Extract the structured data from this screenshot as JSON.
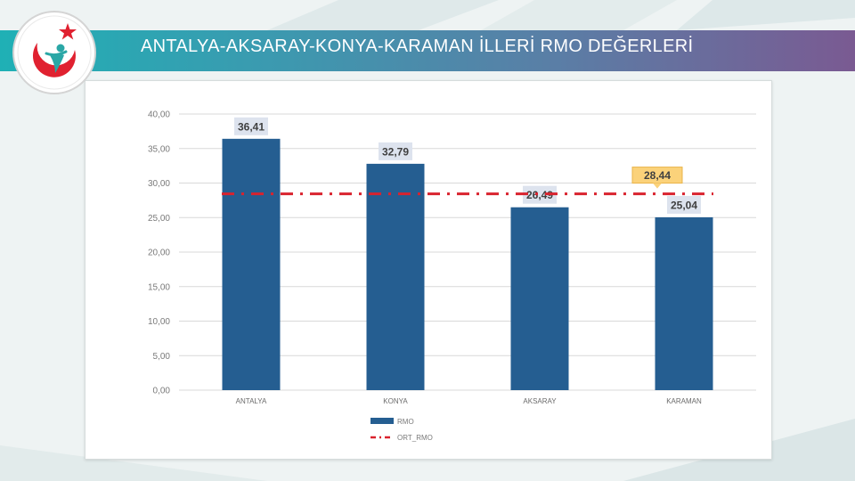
{
  "header": {
    "title": "ANTALYA-AKSARAY-KONYA-KARAMAN İLLERİ RMO DEĞERLERİ",
    "logo_icon": "ministry-of-health-logo-icon"
  },
  "colors": {
    "bar": "#255e91",
    "avg_line": "#d9232e",
    "label_box": "#dde3ee",
    "avg_label_box": "#fbd27a",
    "gridline": "#d9d9d9",
    "title_band_start": "#1fb0b5",
    "title_band_end": "#7a5a92"
  },
  "chart_data": {
    "type": "bar",
    "categories": [
      "ANTALYA",
      "KONYA",
      "AKSARAY",
      "KARAMAN"
    ],
    "series": [
      {
        "name": "RMO",
        "type": "bar",
        "values": [
          36.41,
          32.79,
          26.49,
          25.04
        ],
        "labels": [
          "36,41",
          "32,79",
          "26,49",
          "25,04"
        ]
      },
      {
        "name": "ORT_RMO",
        "type": "line",
        "style": "dash-dot",
        "values": [
          28.44,
          28.44,
          28.44,
          28.44
        ],
        "label": "28,44"
      }
    ],
    "yticks": [
      "0,00",
      "5,00",
      "10,00",
      "15,00",
      "20,00",
      "25,00",
      "30,00",
      "35,00",
      "40,00"
    ],
    "ylim": [
      0,
      40
    ],
    "title": "",
    "xlabel": "",
    "ylabel": "",
    "grid": true,
    "legend": "bottom"
  }
}
